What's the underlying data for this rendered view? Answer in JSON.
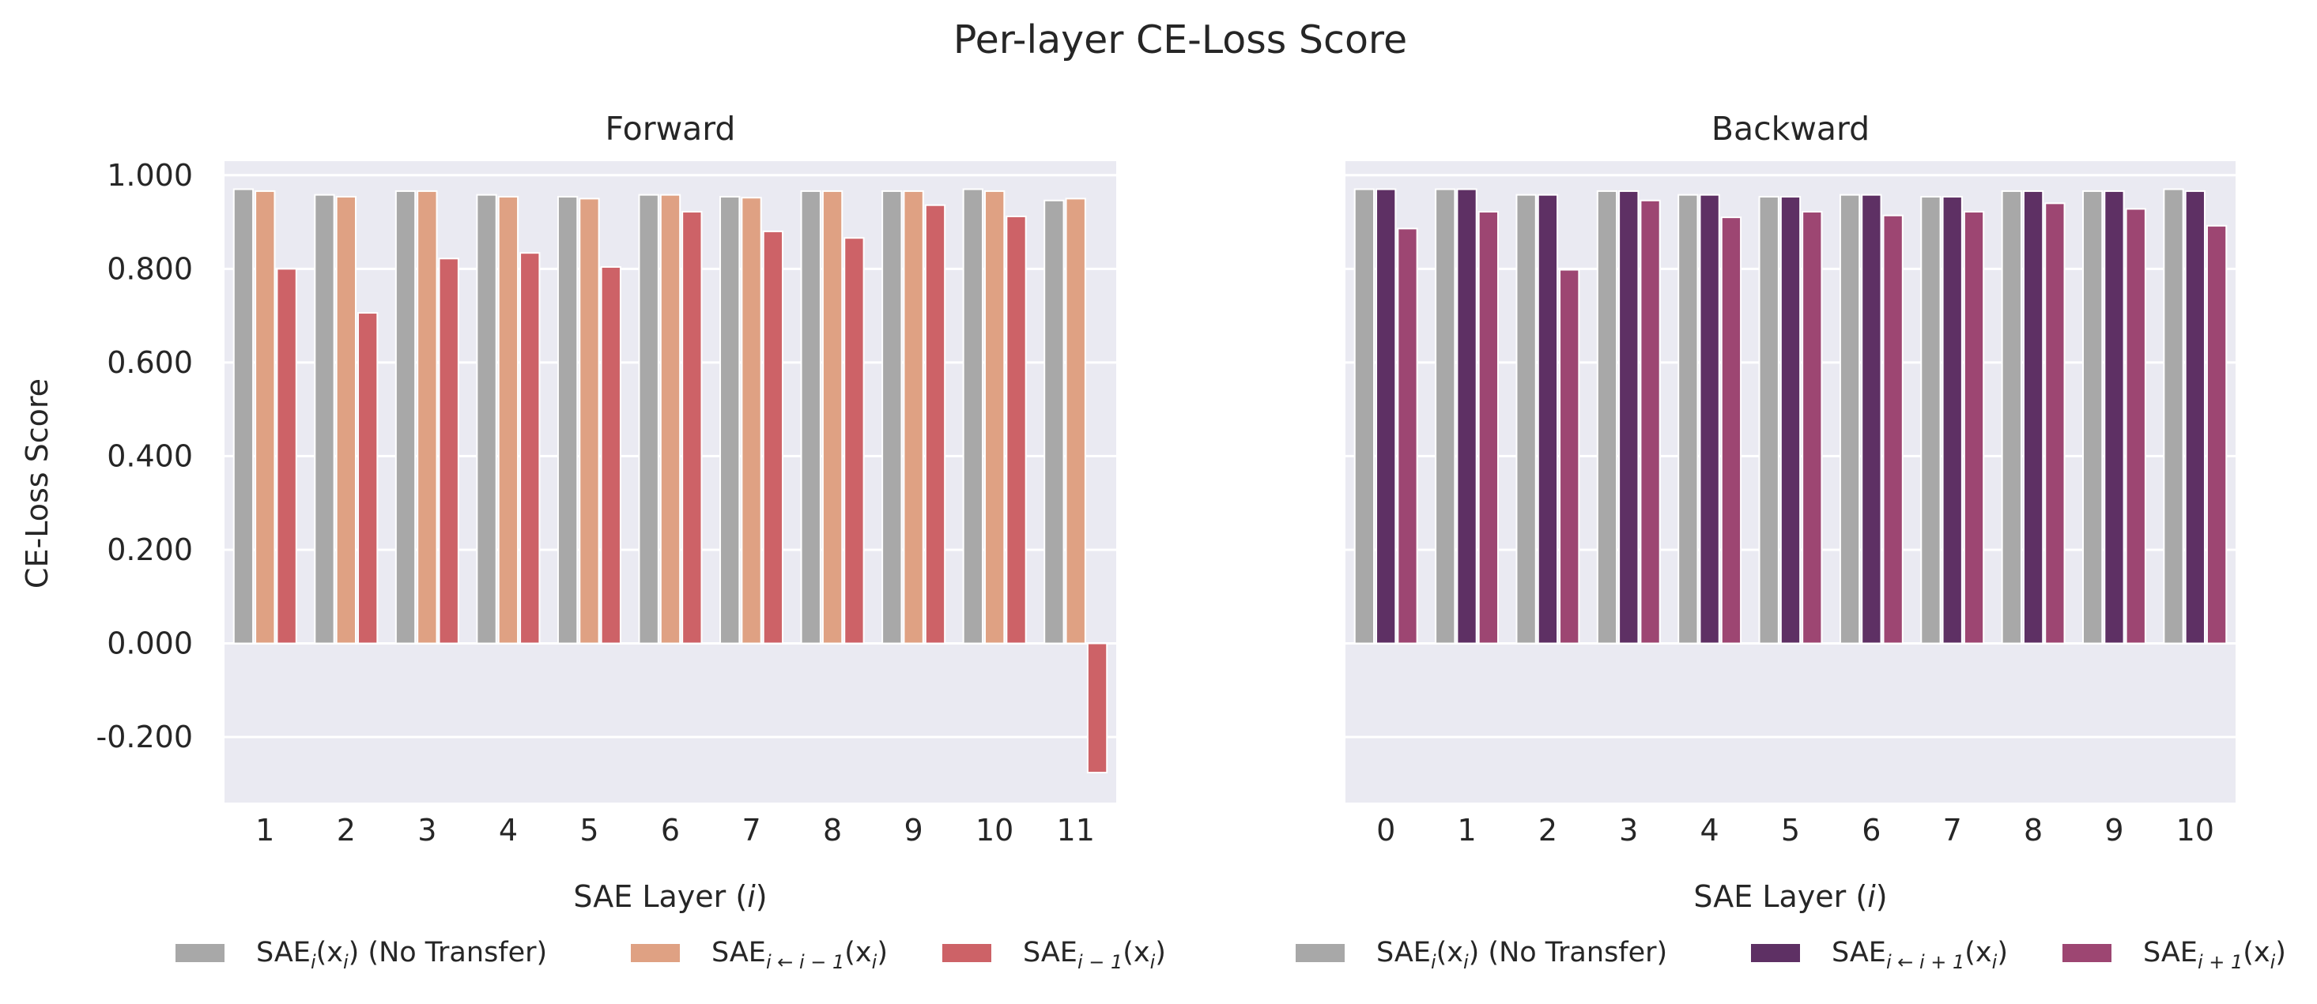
{
  "suptitle": "Per-layer CE-Loss Score",
  "chart_data": [
    {
      "type": "bar",
      "title": "Forward",
      "xlabel": "SAE Layer (i)",
      "ylabel": "CE-Loss Score",
      "categories": [
        "1",
        "2",
        "3",
        "4",
        "5",
        "6",
        "7",
        "8",
        "9",
        "10",
        "11"
      ],
      "yticks": [
        "-0.200",
        "0.000",
        "0.200",
        "0.400",
        "0.600",
        "0.800",
        "1.000"
      ],
      "ylim": [
        -0.34,
        1.03
      ],
      "grid": true,
      "legend_position": "bottom",
      "series": [
        {
          "name": "SAE_i(x_i) (No Transfer)",
          "color": "#a8a8a8",
          "values": [
            0.97,
            0.958,
            0.966,
            0.958,
            0.954,
            0.958,
            0.954,
            0.966,
            0.966,
            0.97,
            0.946
          ]
        },
        {
          "name": "SAE_{i←i−1}(x_i)",
          "color": "#dfa183",
          "values": [
            0.966,
            0.954,
            0.966,
            0.954,
            0.95,
            0.958,
            0.952,
            0.966,
            0.966,
            0.966,
            0.95
          ]
        },
        {
          "name": "SAE_{i−1}(x_i)",
          "color": "#cd6267",
          "values": [
            0.8,
            0.706,
            0.822,
            0.834,
            0.804,
            0.922,
            0.88,
            0.866,
            0.936,
            0.912,
            -0.276
          ]
        }
      ]
    },
    {
      "type": "bar",
      "title": "Backward",
      "xlabel": "SAE Layer (i)",
      "categories": [
        "0",
        "1",
        "2",
        "3",
        "4",
        "5",
        "6",
        "7",
        "8",
        "9",
        "10"
      ],
      "ylim": [
        -0.34,
        1.03
      ],
      "grid": true,
      "legend_position": "bottom",
      "series": [
        {
          "name": "SAE_i(x_i) (No Transfer)",
          "color": "#a8a8a8",
          "values": [
            0.97,
            0.97,
            0.958,
            0.966,
            0.958,
            0.954,
            0.958,
            0.954,
            0.966,
            0.966,
            0.97
          ]
        },
        {
          "name": "SAE_{i←i+1}(x_i)",
          "color": "#5e3064",
          "values": [
            0.97,
            0.97,
            0.958,
            0.966,
            0.958,
            0.954,
            0.958,
            0.954,
            0.966,
            0.966,
            0.966
          ]
        },
        {
          "name": "SAE_{i+1}(x_i)",
          "color": "#9d4672",
          "values": [
            0.886,
            0.922,
            0.798,
            0.946,
            0.91,
            0.922,
            0.914,
            0.922,
            0.94,
            0.928,
            0.892
          ]
        }
      ]
    }
  ],
  "legend": {
    "forward": {
      "no_transfer": {
        "main": "SAE",
        "sub": "i",
        "args": "(x",
        "argsub": "i",
        "tail": ") (No Transfer)"
      },
      "transfer": {
        "main": "SAE",
        "sub": "i ← i − 1",
        "args": "(x",
        "argsub": "i",
        "tail": ")"
      },
      "neighbor": {
        "main": "SAE",
        "sub": "i − 1",
        "args": "(x",
        "argsub": "i",
        "tail": ")"
      }
    },
    "backward": {
      "no_transfer": {
        "main": "SAE",
        "sub": "i",
        "args": "(x",
        "argsub": "i",
        "tail": ") (No Transfer)"
      },
      "transfer": {
        "main": "SAE",
        "sub": "i ← i + 1",
        "args": "(x",
        "argsub": "i",
        "tail": ")"
      },
      "neighbor": {
        "main": "SAE",
        "sub": "i + 1",
        "args": "(x",
        "argsub": "i",
        "tail": ")"
      }
    }
  },
  "axis_label_parts": {
    "prefix": "SAE Layer (",
    "var": "i",
    "suffix": ")"
  }
}
